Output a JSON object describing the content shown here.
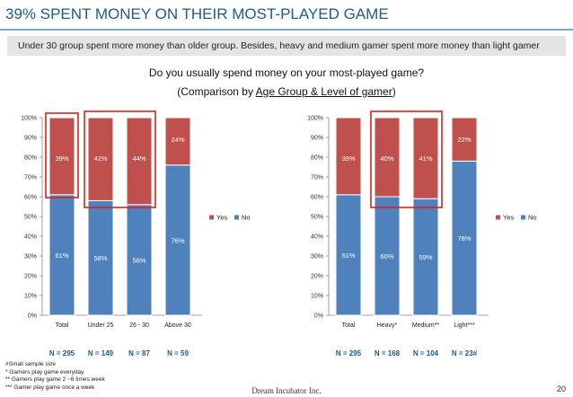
{
  "slide": {
    "title": "39% SPENT MONEY ON THEIR MOST-PLAYED GAME",
    "banner": "Under 30 group spent more money than older group. Besides, heavy and medium gamer spent more money than light gamer",
    "question_line1": "Do you usually spend money on your most-played game?",
    "question_line2_prefix": "(Comparison by ",
    "question_line2_underlined": "Age Group & Level of gamer",
    "question_line2_suffix": ")"
  },
  "chart_data": [
    {
      "type": "bar",
      "stacked": true,
      "categories": [
        "Total",
        "Under 25",
        "26 - 30",
        "Above 30"
      ],
      "series": [
        {
          "name": "No",
          "color": "#4f81bd",
          "values": [
            61,
            58,
            56,
            76
          ],
          "labels": [
            "61%",
            "58%",
            "56%",
            "76%"
          ]
        },
        {
          "name": "Yes",
          "color": "#c0504d",
          "values": [
            39,
            42,
            44,
            24
          ],
          "labels": [
            "39%",
            "42%",
            "44%",
            "24%"
          ]
        }
      ],
      "ylim": [
        0,
        100
      ],
      "yticks": [
        "0%",
        "10%",
        "20%",
        "30%",
        "40%",
        "50%",
        "60%",
        "70%",
        "80%",
        "90%",
        "100%"
      ],
      "legend": [
        "Yes",
        "No"
      ],
      "legend_position": "right",
      "sample_sizes": [
        "N = 295",
        "N = 149",
        "N = 87",
        "N = 59"
      ],
      "highlight_groups": [
        [
          0,
          0
        ],
        [
          1,
          2
        ]
      ]
    },
    {
      "type": "bar",
      "stacked": true,
      "categories": [
        "Total",
        "Heavy*",
        "Medium**",
        "Light***"
      ],
      "series": [
        {
          "name": "No",
          "color": "#4f81bd",
          "values": [
            61,
            60,
            59,
            78
          ],
          "labels": [
            "61%",
            "60%",
            "59%",
            "78%"
          ]
        },
        {
          "name": "Yes",
          "color": "#c0504d",
          "values": [
            39,
            40,
            41,
            22
          ],
          "labels": [
            "39%",
            "40%",
            "41%",
            "22%"
          ]
        }
      ],
      "ylim": [
        0,
        100
      ],
      "yticks": [
        "0%",
        "10%",
        "20%",
        "30%",
        "40%",
        "50%",
        "60%",
        "70%",
        "80%",
        "90%",
        "100%"
      ],
      "legend": [
        "Yes",
        "No"
      ],
      "legend_position": "right",
      "sample_sizes": [
        "N = 295",
        "N = 168",
        "N = 104",
        "N = 23#"
      ],
      "highlight_groups": [
        [
          1,
          2
        ]
      ]
    }
  ],
  "footnotes": [
    "#Small sample size",
    "* Gamers play game everyday",
    "** Gamers play game 2 ~6 times week",
    "*** Gamer play game once a week"
  ],
  "footer": {
    "company": "Dream Incubator Inc.",
    "page": "20"
  }
}
